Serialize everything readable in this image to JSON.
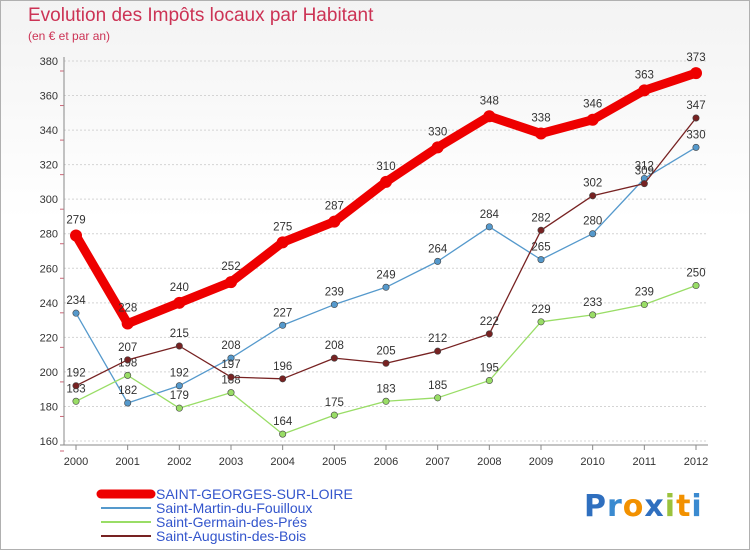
{
  "chart_data": {
    "type": "line",
    "title": "Evolution des Impôts locaux par Habitant",
    "subtitle": "(en € et par an)",
    "xlabel": "",
    "ylabel": "",
    "x": [
      "2000",
      "2001",
      "2002",
      "2003",
      "2004",
      "2005",
      "2006",
      "2007",
      "2008",
      "2009",
      "2010",
      "2011",
      "2012"
    ],
    "ylim": [
      160,
      380
    ],
    "yticks": [
      160,
      180,
      200,
      220,
      240,
      260,
      280,
      300,
      320,
      340,
      360,
      380
    ],
    "grid": "horizontal",
    "legend_position": "bottom-left",
    "series": [
      {
        "name": "SAINT-GEORGES-SUR-LOIRE",
        "color": "#ee0000",
        "width": "thick",
        "values": [
          279,
          228,
          240,
          252,
          275,
          287,
          310,
          330,
          348,
          338,
          346,
          363,
          373
        ]
      },
      {
        "name": "Saint-Martin-du-Fouilloux",
        "color": "#5599cc",
        "width": "thin",
        "values": [
          234,
          182,
          192,
          208,
          227,
          239,
          249,
          264,
          284,
          265,
          280,
          312,
          330
        ]
      },
      {
        "name": "Saint-Germain-des-Prés",
        "color": "#99dd66",
        "width": "thin",
        "values": [
          183,
          198,
          179,
          188,
          164,
          175,
          183,
          185,
          195,
          229,
          233,
          239,
          250
        ]
      },
      {
        "name": "Saint-Augustin-des-Bois",
        "color": "#772222",
        "width": "thin",
        "values": [
          192,
          207,
          215,
          197,
          196,
          208,
          205,
          212,
          222,
          282,
          302,
          309,
          347
        ]
      }
    ]
  },
  "logo": {
    "text": "Proxiti",
    "name": "proxiti-logo"
  }
}
